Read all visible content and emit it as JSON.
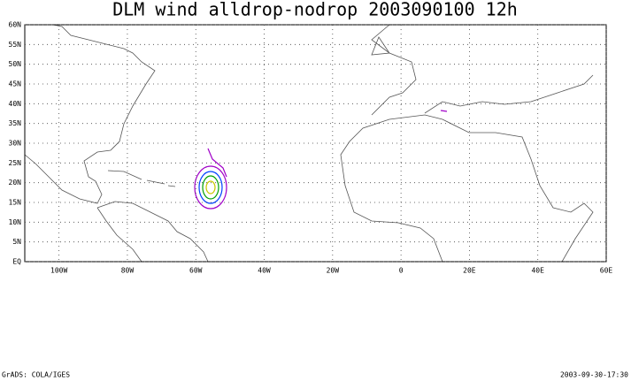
{
  "map": {
    "title": "DLM wind alldrop-nodrop 2003090100 12h",
    "xlim": [
      -110,
      60
    ],
    "ylim": [
      0,
      60
    ],
    "xticks": [
      {
        "value": -100,
        "label": "100W"
      },
      {
        "value": -80,
        "label": "80W"
      },
      {
        "value": -60,
        "label": "60W"
      },
      {
        "value": -40,
        "label": "40W"
      },
      {
        "value": -20,
        "label": "20W"
      },
      0,
      {
        "value": 20,
        "label": "20E"
      },
      {
        "value": 40,
        "label": "40E"
      },
      {
        "value": 60,
        "label": "60E"
      }
    ],
    "yticks": [
      {
        "value": 0,
        "label": "EQ"
      },
      {
        "value": 5,
        "label": "5N"
      },
      {
        "value": 10,
        "label": "10N"
      },
      {
        "value": 15,
        "label": "15N"
      },
      {
        "value": 20,
        "label": "20N"
      },
      {
        "value": 25,
        "label": "25N"
      },
      {
        "value": 30,
        "label": "30N"
      },
      {
        "value": 35,
        "label": "35N"
      },
      {
        "value": 40,
        "label": "40N"
      },
      {
        "value": 45,
        "label": "45N"
      },
      {
        "value": 50,
        "label": "50N"
      },
      {
        "value": 55,
        "label": "55N"
      },
      {
        "value": 60,
        "label": "60N"
      }
    ]
  },
  "footer": {
    "left": "GrADS: COLA/IGES",
    "right": "2003-09-30-17:30"
  }
}
